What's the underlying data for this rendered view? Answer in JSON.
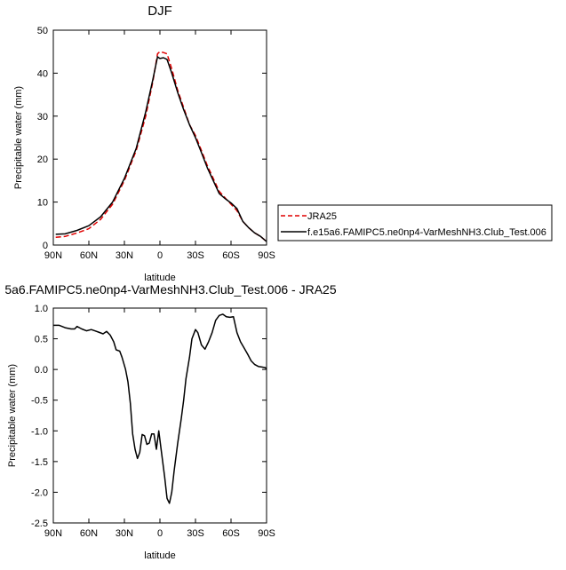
{
  "chart_data": [
    {
      "type": "line",
      "title": "DJF",
      "xlabel": "latitude",
      "ylabel": "Precipitable water (mm)",
      "xlim": [
        90,
        -90
      ],
      "ylim": [
        0,
        50
      ],
      "x_ticks": [
        90,
        60,
        30,
        0,
        -30,
        -60,
        -90
      ],
      "x_tick_labels": [
        "90N",
        "60N",
        "30N",
        "0",
        "30S",
        "60S",
        "90S"
      ],
      "y_ticks": [
        0,
        10,
        20,
        30,
        40,
        50
      ],
      "y_tick_labels": [
        "0",
        "10",
        "20",
        "30",
        "40",
        "50"
      ],
      "legend_position": "right",
      "series": [
        {
          "name": "JRA25",
          "color": "#e00000",
          "dash": "dashed",
          "points": [
            [
              88,
              1.8
            ],
            [
              80,
              2.0
            ],
            [
              70,
              2.8
            ],
            [
              60,
              3.8
            ],
            [
              50,
              6.0
            ],
            [
              40,
              9.5
            ],
            [
              30,
              15.0
            ],
            [
              20,
              22.0
            ],
            [
              12,
              30.0
            ],
            [
              6,
              38.0
            ],
            [
              2,
              44.5
            ],
            [
              0,
              45.0
            ],
            [
              -3,
              44.8
            ],
            [
              -6,
              44.5
            ],
            [
              -10,
              41.0
            ],
            [
              -15,
              36.0
            ],
            [
              -20,
              32.0
            ],
            [
              -25,
              28.0
            ],
            [
              -30,
              25.5
            ],
            [
              -35,
              22.0
            ],
            [
              -40,
              18.5
            ],
            [
              -45,
              15.5
            ],
            [
              -50,
              12.5
            ],
            [
              -55,
              11.0
            ],
            [
              -60,
              9.5
            ],
            [
              -65,
              8.0
            ],
            [
              -70,
              5.5
            ],
            [
              -75,
              4.0
            ],
            [
              -80,
              2.8
            ],
            [
              -85,
              2.0
            ],
            [
              -90,
              0.8
            ]
          ]
        },
        {
          "name": "f.e15a6.FAMIPC5.ne0np4-VarMeshNH3.Club_Test.006",
          "color": "#000000",
          "dash": "solid",
          "points": [
            [
              88,
              2.5
            ],
            [
              80,
              2.6
            ],
            [
              70,
              3.4
            ],
            [
              60,
              4.5
            ],
            [
              50,
              6.6
            ],
            [
              40,
              10.0
            ],
            [
              30,
              15.5
            ],
            [
              20,
              22.5
            ],
            [
              12,
              31.0
            ],
            [
              6,
              38.5
            ],
            [
              2,
              43.8
            ],
            [
              0,
              43.4
            ],
            [
              -3,
              43.6
            ],
            [
              -6,
              43.2
            ],
            [
              -10,
              40.0
            ],
            [
              -15,
              35.5
            ],
            [
              -20,
              31.5
            ],
            [
              -25,
              28.0
            ],
            [
              -30,
              25.0
            ],
            [
              -35,
              21.5
            ],
            [
              -40,
              18.0
            ],
            [
              -45,
              15.0
            ],
            [
              -50,
              12.0
            ],
            [
              -55,
              10.8
            ],
            [
              -60,
              9.8
            ],
            [
              -65,
              8.5
            ],
            [
              -70,
              5.5
            ],
            [
              -75,
              4.0
            ],
            [
              -80,
              2.8
            ],
            [
              -85,
              2.0
            ],
            [
              -90,
              0.8
            ]
          ]
        }
      ]
    },
    {
      "type": "line",
      "title": "5a6.FAMIPC5.ne0np4-VarMeshNH3.Club_Test.006 - JRA25",
      "xlabel": "latitude",
      "ylabel": "Precipitable water (mm)",
      "xlim": [
        90,
        -90
      ],
      "ylim": [
        -2.5,
        1.0
      ],
      "x_ticks": [
        90,
        60,
        30,
        0,
        -30,
        -60,
        -90
      ],
      "x_tick_labels": [
        "90N",
        "60N",
        "30N",
        "0",
        "30S",
        "60S",
        "90S"
      ],
      "y_ticks": [
        -2.5,
        -2.0,
        -1.5,
        -1.0,
        -0.5,
        0.0,
        0.5,
        1.0
      ],
      "y_tick_labels": [
        "-2.5",
        "-2.0",
        "-1.5",
        "-1.0",
        "-0.5",
        "0.0",
        "0.5",
        "1.0"
      ],
      "series": [
        {
          "color": "#000000",
          "dash": "solid",
          "points": [
            [
              90,
              0.72
            ],
            [
              85,
              0.72
            ],
            [
              80,
              0.68
            ],
            [
              75,
              0.66
            ],
            [
              72,
              0.66
            ],
            [
              70,
              0.7
            ],
            [
              66,
              0.66
            ],
            [
              62,
              0.63
            ],
            [
              58,
              0.65
            ],
            [
              55,
              0.63
            ],
            [
              52,
              0.61
            ],
            [
              48,
              0.58
            ],
            [
              45,
              0.62
            ],
            [
              42,
              0.56
            ],
            [
              39,
              0.45
            ],
            [
              37,
              0.32
            ],
            [
              34,
              0.3
            ],
            [
              32,
              0.2
            ],
            [
              29,
              0.0
            ],
            [
              27,
              -0.2
            ],
            [
              25,
              -0.55
            ],
            [
              23,
              -1.05
            ],
            [
              21,
              -1.3
            ],
            [
              19,
              -1.45
            ],
            [
              17,
              -1.35
            ],
            [
              15,
              -1.06
            ],
            [
              13,
              -1.08
            ],
            [
              11,
              -1.22
            ],
            [
              9,
              -1.2
            ],
            [
              7,
              -1.05
            ],
            [
              5,
              -1.05
            ],
            [
              3,
              -1.3
            ],
            [
              1,
              -1.0
            ],
            [
              -1,
              -1.3
            ],
            [
              -4,
              -1.75
            ],
            [
              -6,
              -2.1
            ],
            [
              -8,
              -2.18
            ],
            [
              -10,
              -2.0
            ],
            [
              -12,
              -1.65
            ],
            [
              -15,
              -1.2
            ],
            [
              -18,
              -0.8
            ],
            [
              -20,
              -0.5
            ],
            [
              -22,
              -0.15
            ],
            [
              -25,
              0.2
            ],
            [
              -27,
              0.5
            ],
            [
              -30,
              0.65
            ],
            [
              -32,
              0.6
            ],
            [
              -35,
              0.4
            ],
            [
              -38,
              0.33
            ],
            [
              -41,
              0.45
            ],
            [
              -44,
              0.6
            ],
            [
              -47,
              0.8
            ],
            [
              -50,
              0.88
            ],
            [
              -53,
              0.9
            ],
            [
              -56,
              0.86
            ],
            [
              -59,
              0.85
            ],
            [
              -62,
              0.86
            ],
            [
              -65,
              0.6
            ],
            [
              -68,
              0.45
            ],
            [
              -71,
              0.35
            ],
            [
              -74,
              0.25
            ],
            [
              -77,
              0.14
            ],
            [
              -80,
              0.08
            ],
            [
              -83,
              0.05
            ],
            [
              -86,
              0.04
            ],
            [
              -89,
              0.03
            ],
            [
              -90,
              0.0
            ]
          ]
        }
      ]
    }
  ]
}
